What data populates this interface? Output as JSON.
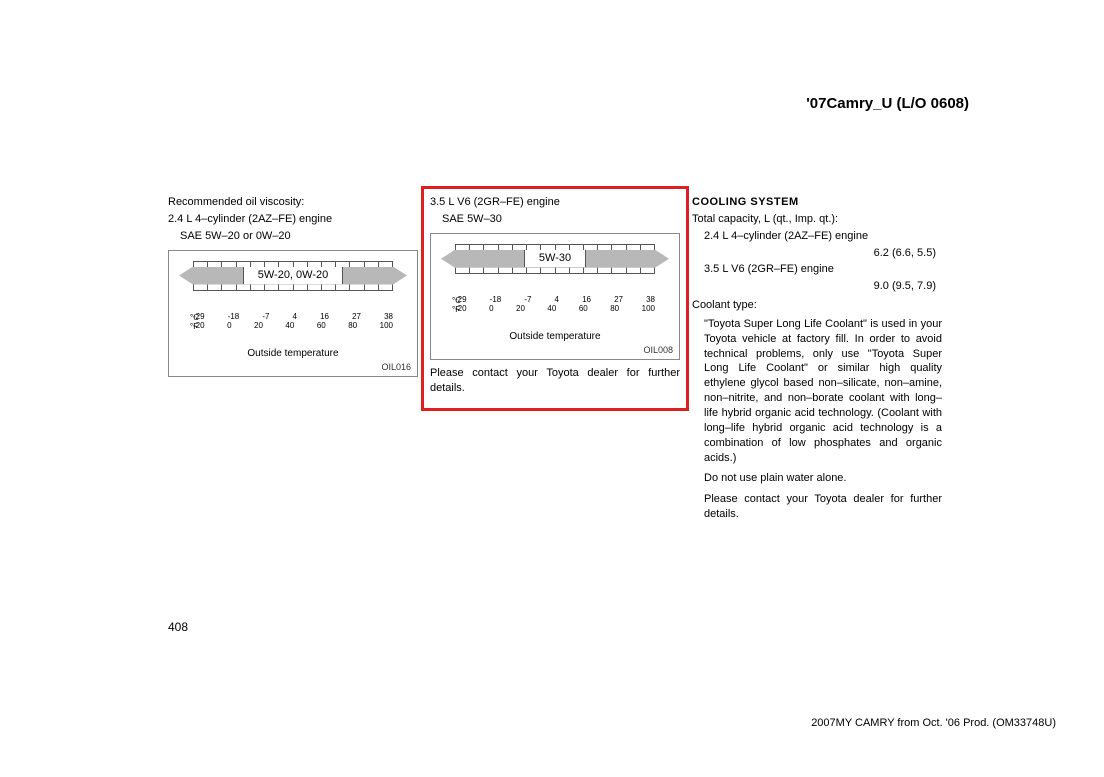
{
  "header": {
    "title": "'07Camry_U (L/O 0608)"
  },
  "col1": {
    "heading": "Recommended oil viscosity:",
    "engine": "2.4 L 4–cylinder (2AZ–FE) engine",
    "spec": "SAE 5W–20 or 0W–20",
    "chart": {
      "arrow_label": "5W-20, 0W-20",
      "c_values": [
        "-29",
        "-18",
        "-7",
        "4",
        "16",
        "27",
        "38"
      ],
      "f_values": [
        "-20",
        "0",
        "20",
        "40",
        "60",
        "80",
        "100"
      ],
      "caption": "Outside temperature",
      "code": "OIL016",
      "bar_color": "#b8b8b8",
      "grid_cells": 14
    }
  },
  "col2": {
    "engine": "3.5 L V6 (2GR–FE) engine",
    "spec": "SAE 5W–30",
    "chart": {
      "arrow_label": "5W-30",
      "c_values": [
        "-29",
        "-18",
        "-7",
        "4",
        "16",
        "27",
        "38"
      ],
      "f_values": [
        "-20",
        "0",
        "20",
        "40",
        "60",
        "80",
        "100"
      ],
      "caption": "Outside temperature",
      "code": "OIL008",
      "bar_color": "#b8b8b8",
      "grid_cells": 14
    },
    "note": "Please contact your Toyota dealer for further details.",
    "highlight_color": "#e02020"
  },
  "col3": {
    "title": "COOLING SYSTEM",
    "capacity_label": "Total capacity, L (qt., Imp. qt.):",
    "engine1": "2.4 L 4–cylinder (2AZ–FE) engine",
    "cap1": "6.2 (6.6, 5.5)",
    "engine2": "3.5 L V6 (2GR–FE) engine",
    "cap2": "9.0 (9.5, 7.9)",
    "coolant_label": "Coolant type:",
    "coolant_body": "\"Toyota Super Long Life Coolant\" is used in your Toyota vehicle at factory fill. In order to avoid technical problems, only use \"Toyota Super Long Life Coolant\" or similar high quality ethylene glycol based non–silicate, non–amine, non–nitrite, and non–borate coolant with long–life hybrid organic acid technology. (Coolant with long–life hybrid organic acid technology is a combination of low phosphates and organic acids.)",
    "warn": "Do not use plain water alone.",
    "contact": "Please contact your Toyota dealer for further details."
  },
  "footer": {
    "page": "408",
    "line": "2007MY CAMRY from Oct. '06 Prod. (OM33748U)"
  }
}
